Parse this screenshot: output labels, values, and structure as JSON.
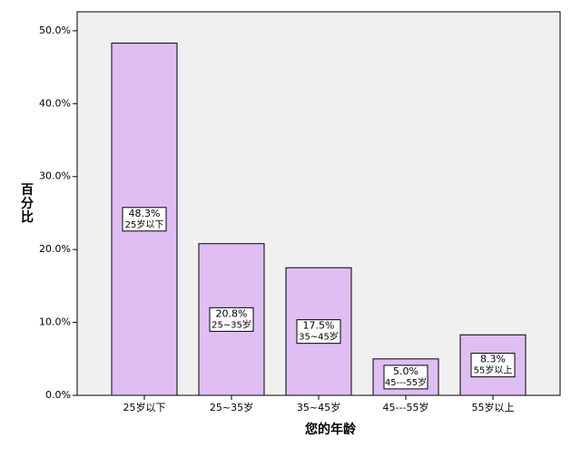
{
  "chart_data": {
    "type": "bar",
    "x_label": "您的年龄",
    "y_label": "百分比",
    "categories": [
      "25岁以下",
      "25~35岁",
      "35~45岁",
      "45---55岁",
      "55岁以上"
    ],
    "values": [
      48.3,
      20.8,
      17.5,
      5.0,
      8.3
    ],
    "value_labels": [
      "48.3%",
      "20.8%",
      "17.5%",
      "5.0%",
      "8.3%"
    ],
    "color": "#dfbff3",
    "ylim": [
      0,
      52.6
    ],
    "yticks": [
      {
        "value": 0,
        "label": "0.0%"
      },
      {
        "value": 10,
        "label": "10.0%"
      },
      {
        "value": 20,
        "label": "20.0%"
      },
      {
        "value": 30,
        "label": "30.0%"
      },
      {
        "value": 40,
        "label": "40.0%"
      },
      {
        "value": 50,
        "label": "50.0%"
      }
    ]
  }
}
